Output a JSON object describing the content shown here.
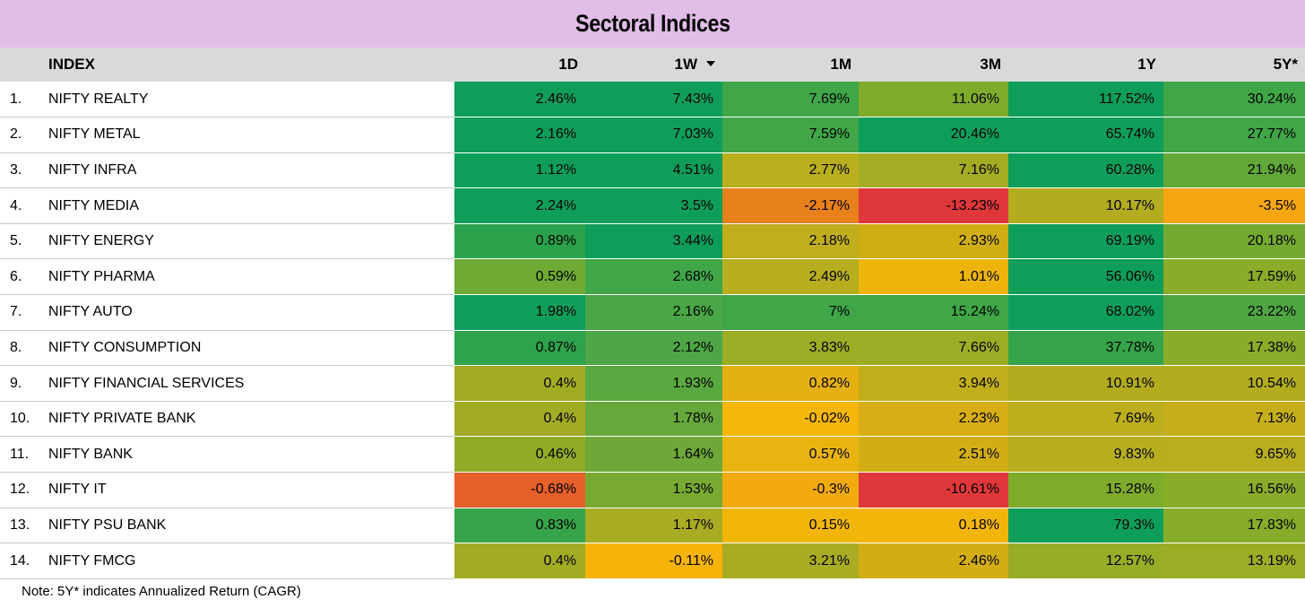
{
  "title": "Sectoral Indices",
  "note": "Note: 5Y* indicates Annualized Return (CAGR)",
  "chart_data": {
    "type": "table",
    "title": "Sectoral Indices",
    "columns": [
      "",
      "INDEX",
      "1D",
      "1W",
      "1M",
      "3M",
      "1Y",
      "5Y*"
    ],
    "sorted_column": "1W",
    "sort_direction": "descending",
    "rows": [
      {
        "rank": "1.",
        "index": "NIFTY REALTY",
        "values": [
          "2.46%",
          "7.43%",
          "7.69%",
          "11.06%",
          "117.52%",
          "30.24%"
        ],
        "colors": [
          "#0e9e5a",
          "#0e9e5a",
          "#40a648",
          "#7eac2a",
          "#0e9e5a",
          "#40a648"
        ]
      },
      {
        "rank": "2.",
        "index": "NIFTY METAL",
        "values": [
          "2.16%",
          "7.03%",
          "7.59%",
          "20.46%",
          "65.74%",
          "27.77%"
        ],
        "colors": [
          "#0e9e5a",
          "#0e9e5a",
          "#40a648",
          "#0e9e5a",
          "#0e9e5a",
          "#40a648"
        ]
      },
      {
        "rank": "3.",
        "index": "NIFTY INFRA",
        "values": [
          "1.12%",
          "4.51%",
          "2.77%",
          "7.16%",
          "60.28%",
          "21.94%"
        ],
        "colors": [
          "#0e9e5a",
          "#0e9e5a",
          "#b8ae1e",
          "#a3ac22",
          "#0e9e5a",
          "#62a838"
        ]
      },
      {
        "rank": "4.",
        "index": "NIFTY MEDIA",
        "values": [
          "2.24%",
          "3.5%",
          "-2.17%",
          "-13.23%",
          "10.17%",
          "-3.5%"
        ],
        "colors": [
          "#0e9e5a",
          "#0e9e5a",
          "#e8801c",
          "#e0383a",
          "#b2ac1e",
          "#f6a611"
        ]
      },
      {
        "rank": "5.",
        "index": "NIFTY ENERGY",
        "values": [
          "0.89%",
          "3.44%",
          "2.18%",
          "2.93%",
          "69.19%",
          "20.18%"
        ],
        "colors": [
          "#2aa24c",
          "#0e9e5a",
          "#c0ae1c",
          "#cfae14",
          "#0e9e5a",
          "#74aa30"
        ]
      },
      {
        "rank": "6.",
        "index": "NIFTY PHARMA",
        "values": [
          "0.59%",
          "2.68%",
          "2.49%",
          "1.01%",
          "56.06%",
          "17.59%"
        ],
        "colors": [
          "#6eaa34",
          "#40a648",
          "#b6ae1e",
          "#eeb40c",
          "#0e9e5a",
          "#8aac28"
        ]
      },
      {
        "rank": "7.",
        "index": "NIFTY AUTO",
        "values": [
          "1.98%",
          "2.16%",
          "7%",
          "15.24%",
          "68.02%",
          "23.22%"
        ],
        "colors": [
          "#0e9e5a",
          "#4aa646",
          "#40a648",
          "#40a648",
          "#0e9e5a",
          "#50a642"
        ]
      },
      {
        "rank": "8.",
        "index": "NIFTY CONSUMPTION",
        "values": [
          "0.87%",
          "2.12%",
          "3.83%",
          "7.66%",
          "37.78%",
          "17.38%"
        ],
        "colors": [
          "#2ea24c",
          "#4ea646",
          "#9cac24",
          "#9cac24",
          "#36a44a",
          "#8aac28"
        ]
      },
      {
        "rank": "9.",
        "index": "NIFTY FINANCIAL SERVICES",
        "values": [
          "0.4%",
          "1.93%",
          "0.82%",
          "3.94%",
          "10.91%",
          "10.54%"
        ],
        "colors": [
          "#a2ac22",
          "#5aa840",
          "#e4b012",
          "#c2ae1c",
          "#b2ac1e",
          "#b2ac1e"
        ]
      },
      {
        "rank": "10.",
        "index": "NIFTY PRIVATE BANK",
        "values": [
          "0.4%",
          "1.78%",
          "-0.02%",
          "2.23%",
          "7.69%",
          "7.13%"
        ],
        "colors": [
          "#a2ac22",
          "#66a83c",
          "#f6b60a",
          "#d8ae14",
          "#bcae1c",
          "#c6ae1a"
        ]
      },
      {
        "rank": "11.",
        "index": "NIFTY BANK",
        "values": [
          "0.46%",
          "1.64%",
          "0.57%",
          "2.51%",
          "9.83%",
          "9.65%"
        ],
        "colors": [
          "#90ac26",
          "#6ea838",
          "#eab410",
          "#d2ae14",
          "#b6ae1e",
          "#b8ae1e"
        ]
      },
      {
        "rank": "12.",
        "index": "NIFTY IT",
        "values": [
          "-0.68%",
          "1.53%",
          "-0.3%",
          "-10.61%",
          "15.28%",
          "16.56%"
        ],
        "colors": [
          "#e6602a",
          "#78aa32",
          "#f2aa0e",
          "#e0383a",
          "#7eac2a",
          "#8aac28"
        ]
      },
      {
        "rank": "13.",
        "index": "NIFTY PSU BANK",
        "values": [
          "0.83%",
          "1.17%",
          "0.15%",
          "0.18%",
          "79.3%",
          "17.83%"
        ],
        "colors": [
          "#36a44a",
          "#a8ac22",
          "#f2b60a",
          "#f2b60a",
          "#0e9e5a",
          "#86ac2a"
        ]
      },
      {
        "rank": "14.",
        "index": "NIFTY FMCG",
        "values": [
          "0.4%",
          "-0.11%",
          "3.21%",
          "2.46%",
          "12.57%",
          "13.19%"
        ],
        "colors": [
          "#a2ac22",
          "#f6b40a",
          "#a8ac22",
          "#d2ae14",
          "#98ac26",
          "#9cac24"
        ]
      }
    ]
  }
}
